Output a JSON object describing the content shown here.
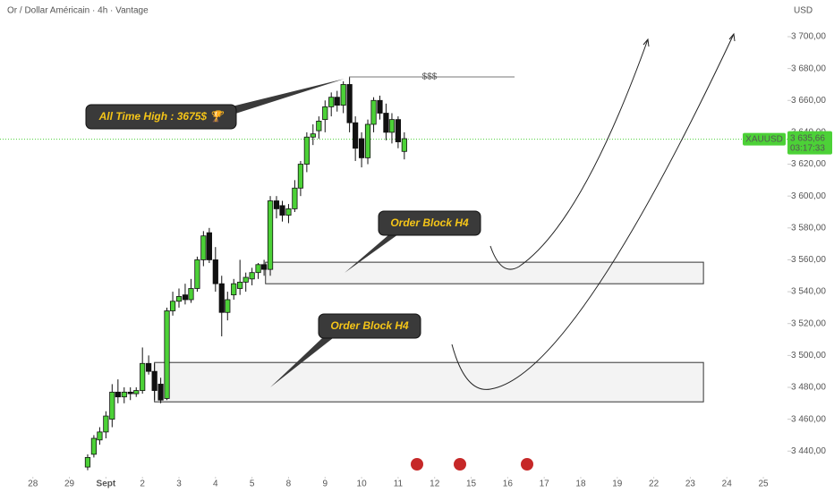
{
  "chart_data": {
    "type": "candlestick",
    "title": "Or / Dollar Américain · 4h · Vantage",
    "currency": "USD",
    "symbol": "XAUUSD",
    "last_price": {
      "value": 3635.66,
      "label": "3 635,66"
    },
    "countdown": "03:17:33",
    "xlim": [
      -0.9,
      20.66
    ],
    "ylim": [
      3425,
      3723
    ],
    "xticks": [
      {
        "value": 0,
        "label": "28"
      },
      {
        "value": 1,
        "label": "29"
      },
      {
        "value": 2,
        "label": "Sept"
      },
      {
        "value": 3,
        "label": "2"
      },
      {
        "value": 4,
        "label": "3"
      },
      {
        "value": 5,
        "label": "4"
      },
      {
        "value": 6,
        "label": "5"
      },
      {
        "value": 7,
        "label": "8"
      },
      {
        "value": 8,
        "label": "9"
      },
      {
        "value": 9,
        "label": "10"
      },
      {
        "value": 10,
        "label": "11"
      },
      {
        "value": 11,
        "label": "12"
      },
      {
        "value": 12,
        "label": "15"
      },
      {
        "value": 13,
        "label": "16"
      },
      {
        "value": 14,
        "label": "17"
      },
      {
        "value": 15,
        "label": "18"
      },
      {
        "value": 16,
        "label": "19"
      },
      {
        "value": 17,
        "label": "22"
      },
      {
        "value": 18,
        "label": "23"
      },
      {
        "value": 19,
        "label": "24"
      },
      {
        "value": 20,
        "label": "25"
      }
    ],
    "yticks": [
      {
        "value": 3440,
        "label": "3 440,00"
      },
      {
        "value": 3460,
        "label": "3 460,00"
      },
      {
        "value": 3480,
        "label": "3 480,00"
      },
      {
        "value": 3500,
        "label": "3 500,00"
      },
      {
        "value": 3520,
        "label": "3 520,00"
      },
      {
        "value": 3540,
        "label": "3 540,00"
      },
      {
        "value": 3560,
        "label": "3 560,00"
      },
      {
        "value": 3580,
        "label": "3 580,00"
      },
      {
        "value": 3600,
        "label": "3 600,00"
      },
      {
        "value": 3620,
        "label": "3 620,00"
      },
      {
        "value": 3640,
        "label": "3 640,00"
      },
      {
        "value": 3660,
        "label": "3 660,00"
      },
      {
        "value": 3680,
        "label": "3 680,00"
      },
      {
        "value": 3700,
        "label": "3 700,00"
      }
    ],
    "up_color": "#4cd137",
    "down_color": "#111111",
    "x": [
      1.5,
      1.67,
      1.83,
      2,
      2.17,
      2.33,
      2.5,
      2.67,
      2.83,
      3,
      3.17,
      3.33,
      3.5,
      3.67,
      3.83,
      4,
      4.17,
      4.33,
      4.5,
      4.67,
      4.83,
      5,
      5.17,
      5.33,
      5.5,
      5.67,
      5.83,
      6,
      6.17,
      6.33,
      6.5,
      6.67,
      6.83,
      7,
      7.17,
      7.33,
      7.5,
      7.67,
      7.83,
      8,
      8.17,
      8.33,
      8.5,
      8.67,
      8.83,
      9,
      9.17,
      9.33,
      9.5,
      9.67,
      9.83,
      10,
      10.17
    ],
    "open": [
      3430,
      3438,
      3447,
      3452,
      3460,
      3477,
      3474,
      3477,
      3476,
      3478,
      3495,
      3490,
      3482,
      3473,
      3528,
      3534,
      3538,
      3535,
      3542,
      3560,
      3577,
      3560,
      3545,
      3527,
      3538,
      3542,
      3546,
      3548,
      3552,
      3557,
      3554,
      3597,
      3594,
      3588,
      3592,
      3605,
      3620,
      3637,
      3641,
      3648,
      3656,
      3662,
      3657,
      3670,
      3646,
      3636,
      3624,
      3645,
      3660,
      3652,
      3640,
      3648,
      3628
    ],
    "high": [
      3438,
      3450,
      3455,
      3465,
      3482,
      3485,
      3480,
      3480,
      3480,
      3505,
      3500,
      3495,
      3486,
      3530,
      3540,
      3542,
      3545,
      3548,
      3562,
      3578,
      3580,
      3568,
      3550,
      3540,
      3548,
      3560,
      3552,
      3555,
      3558,
      3560,
      3600,
      3600,
      3597,
      3595,
      3610,
      3622,
      3640,
      3645,
      3650,
      3660,
      3665,
      3666,
      3672,
      3675,
      3650,
      3640,
      3648,
      3662,
      3663,
      3658,
      3652,
      3650,
      3640
    ],
    "low": [
      3428,
      3436,
      3444,
      3448,
      3455,
      3470,
      3470,
      3472,
      3474,
      3476,
      3488,
      3472,
      3470,
      3472,
      3525,
      3530,
      3532,
      3533,
      3540,
      3556,
      3558,
      3540,
      3512,
      3522,
      3535,
      3538,
      3540,
      3544,
      3548,
      3550,
      3550,
      3586,
      3584,
      3583,
      3590,
      3600,
      3615,
      3632,
      3636,
      3640,
      3650,
      3653,
      3652,
      3640,
      3622,
      3618,
      3620,
      3640,
      3648,
      3635,
      3633,
      3630,
      3623
    ],
    "close": [
      3436,
      3448,
      3452,
      3462,
      3477,
      3474,
      3477,
      3476,
      3478,
      3495,
      3490,
      3478,
      3472,
      3528,
      3534,
      3537,
      3535,
      3542,
      3560,
      3575,
      3560,
      3545,
      3527,
      3535,
      3545,
      3546,
      3549,
      3552,
      3557,
      3554,
      3597,
      3592,
      3588,
      3592,
      3605,
      3620,
      3637,
      3639,
      3647,
      3656,
      3662,
      3657,
      3670,
      3646,
      3630,
      3624,
      3645,
      3660,
      3652,
      3640,
      3648,
      3634,
      3636
    ],
    "zones": [
      {
        "label": "Order Block H4",
        "x": [
          6.37,
          18.36
        ],
        "y": [
          3545,
          3558.5
        ]
      },
      {
        "label": "Order Block H4",
        "x": [
          3.33,
          18.36
        ],
        "y": [
          3470.9,
          3495.6
        ]
      }
    ],
    "annotation": "All Time High : 3675$ 🏆",
    "liquidity_label": "$$$"
  }
}
